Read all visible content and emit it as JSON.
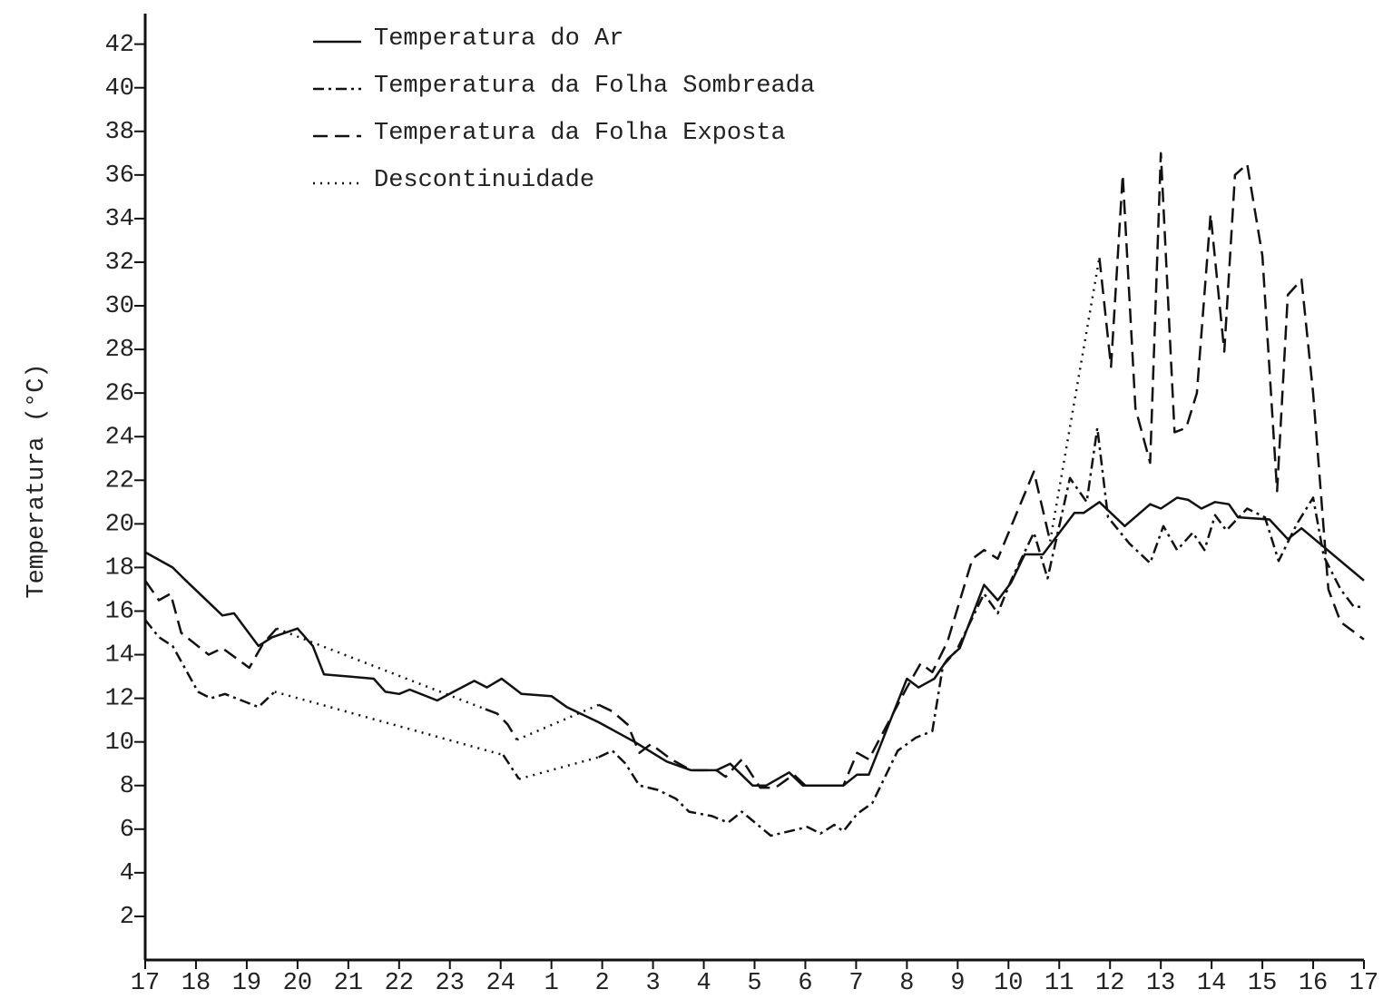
{
  "chart_data": {
    "type": "line",
    "y_label": "Temperatura (°C)",
    "xlim": [
      0,
      24
    ],
    "xticks": [
      {
        "value": 0,
        "label": "17"
      },
      {
        "value": 1,
        "label": "18"
      },
      {
        "value": 2,
        "label": "19"
      },
      {
        "value": 3,
        "label": "20"
      },
      {
        "value": 4,
        "label": "21"
      },
      {
        "value": 5,
        "label": "22"
      },
      {
        "value": 6,
        "label": "23"
      },
      {
        "value": 7,
        "label": "24"
      },
      {
        "value": 8,
        "label": "1"
      },
      {
        "value": 9,
        "label": "2"
      },
      {
        "value": 10,
        "label": "3"
      },
      {
        "value": 11,
        "label": "4"
      },
      {
        "value": 12,
        "label": "5"
      },
      {
        "value": 13,
        "label": "6"
      },
      {
        "value": 14,
        "label": "7"
      },
      {
        "value": 15,
        "label": "8"
      },
      {
        "value": 16,
        "label": "9"
      },
      {
        "value": 17,
        "label": "10"
      },
      {
        "value": 18,
        "label": "11"
      },
      {
        "value": 19,
        "label": "12"
      },
      {
        "value": 20,
        "label": "13"
      },
      {
        "value": 21,
        "label": "14"
      },
      {
        "value": 22,
        "label": "15"
      },
      {
        "value": 23,
        "label": "16"
      },
      {
        "value": 24,
        "label": "17"
      }
    ],
    "ylim": [
      0,
      43.4
    ],
    "yticks": [
      2,
      4,
      6,
      8,
      10,
      12,
      14,
      16,
      18,
      20,
      22,
      24,
      26,
      28,
      30,
      32,
      34,
      36,
      38,
      40,
      42
    ],
    "color": "#111111",
    "gap_legend": "Descontinuidade",
    "gap_style": "dotted",
    "series": [
      {
        "name": "Temperatura do Ar",
        "style": "solid",
        "x": [
          0,
          0.54,
          0.8,
          1.52,
          1.75,
          2.23,
          2.5,
          3.0,
          3.3,
          3.52,
          4.5,
          4.73,
          5.0,
          5.21,
          5.75,
          6.07,
          6.48,
          6.73,
          7.02,
          7.41,
          8.0,
          8.3,
          8.93,
          9.64,
          10.27,
          10.75,
          11.25,
          11.52,
          11.96,
          12.23,
          12.68,
          12.95,
          13.75,
          14.02,
          14.25,
          15.0,
          15.23,
          15.54,
          15.8,
          16.04,
          16.52,
          16.79,
          17.05,
          17.32,
          17.68,
          18.3,
          18.48,
          18.79,
          19.29,
          19.79,
          20.0,
          20.32,
          20.54,
          20.8,
          21.07,
          21.34,
          21.52,
          22.14,
          22.5,
          22.77,
          24
        ],
        "values": [
          18.7,
          18,
          17.4,
          15.8,
          15.9,
          14.4,
          14.8,
          15.2,
          14.4,
          13.1,
          12.9,
          12.3,
          12.2,
          12.4,
          11.9,
          12.3,
          12.8,
          12.5,
          12.9,
          12.2,
          12.1,
          11.6,
          10.9,
          10,
          9.1,
          8.7,
          8.7,
          9.0,
          8.0,
          8.0,
          8.6,
          8.0,
          8.0,
          8.5,
          8.5,
          12.9,
          12.5,
          12.9,
          13.8,
          14.3,
          17.2,
          16.5,
          17.3,
          18.6,
          18.6,
          20.5,
          20.5,
          21,
          19.9,
          20.9,
          20.7,
          21.2,
          21.1,
          20.7,
          21,
          20.9,
          20.3,
          20.2,
          19.3,
          19.8,
          17.4
        ]
      },
      {
        "name": "Temperatura da Folha Sombreada",
        "style": "dashdot",
        "x": [
          0,
          0.27,
          0.54,
          1.04,
          1.29,
          1.57,
          2.23,
          2.55,
          null,
          7.05,
          7.36,
          null,
          8.93,
          9.2,
          9.46,
          9.73,
          10.09,
          10.45,
          10.71,
          11.16,
          11.48,
          11.75,
          12.32,
          13.04,
          13.3,
          13.57,
          13.75,
          14.02,
          14.32,
          14.82,
          15.18,
          15.5,
          15.71,
          15.98,
          16.52,
          16.79,
          17.05,
          17.5,
          17.77,
          18.21,
          18.54,
          18.75,
          18.96,
          19.38,
          19.79,
          20.05,
          20.32,
          20.63,
          20.86,
          21.07,
          21.29,
          21.7,
          22.05,
          22.32,
          22.68,
          23,
          23.21,
          23.54,
          23.8,
          24
        ],
        "values": [
          15.6,
          14.8,
          14.4,
          12.3,
          12,
          12.2,
          11.6,
          12.3,
          null,
          9.4,
          8.3,
          null,
          9.3,
          9.6,
          9.0,
          8.0,
          7.8,
          7.4,
          6.8,
          6.6,
          6.3,
          6.8,
          5.7,
          6.1,
          5.8,
          6.2,
          5.9,
          6.7,
          7.2,
          9.6,
          10.2,
          10.5,
          13.5,
          14.2,
          16.8,
          15.9,
          17.4,
          19.6,
          17.5,
          22.1,
          21,
          24.4,
          20.3,
          19.1,
          18.2,
          19.9,
          18.8,
          19.6,
          18.8,
          20.4,
          19.7,
          20.7,
          20.3,
          18.3,
          20,
          21.2,
          18.5,
          17,
          16.2,
          16.2
        ]
      },
      {
        "name": "Temperatura da Folha Exposta",
        "style": "dashed",
        "x": [
          0,
          0.27,
          0.5,
          0.71,
          1.25,
          1.52,
          2.05,
          2.32,
          2.59,
          null,
          6.7,
          6.93,
          7.14,
          7.32,
          null,
          8.93,
          9.2,
          9.5,
          9.73,
          9.96,
          10.36,
          10.75,
          11.25,
          11.43,
          11.75,
          12.11,
          12.41,
          12.77,
          13,
          13.75,
          14.02,
          14.25,
          15,
          15.27,
          15.5,
          15.8,
          16.29,
          16.52,
          16.79,
          17.5,
          17.82,
          null,
          18.79,
          19.02,
          19.25,
          19.5,
          19.79,
          20,
          20.27,
          20.5,
          20.71,
          20.98,
          21.25,
          21.46,
          21.7,
          22,
          22.29,
          22.5,
          22.77,
          23,
          23.3,
          23.54,
          24
        ],
        "values": [
          17.4,
          16.5,
          16.8,
          15,
          14,
          14.3,
          13.4,
          14.5,
          15.2,
          null,
          11.5,
          11.3,
          10.8,
          10.1,
          null,
          11.7,
          11.4,
          10.8,
          9.5,
          9.9,
          9.2,
          8.7,
          8.7,
          8.4,
          9.2,
          7.9,
          7.9,
          8.5,
          8.0,
          8.0,
          9.5,
          9.2,
          12.5,
          13.6,
          13.2,
          14.6,
          18.4,
          18.8,
          18.4,
          22.4,
          19.2,
          null,
          32.2,
          27.2,
          36,
          25.3,
          22.8,
          37,
          24.2,
          24.4,
          26,
          34.2,
          27.9,
          36,
          36.5,
          32.3,
          21.5,
          30.5,
          31.2,
          26,
          17,
          15.5,
          14.7
        ]
      }
    ]
  }
}
